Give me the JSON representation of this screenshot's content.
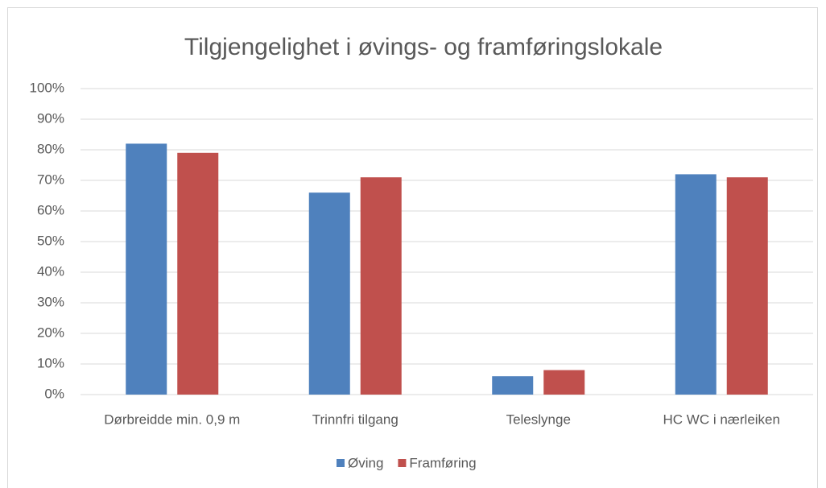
{
  "chart_data": {
    "type": "bar",
    "title": "Tilgjengelighet i øvings- og framføringslokale",
    "categories": [
      "Dørbreidde min. 0,9 m",
      "Trinnfri tilgang",
      "Teleslynge",
      "HC WC i nærleiken"
    ],
    "series": [
      {
        "name": "Øving",
        "color": "#4f81bd",
        "values": [
          82,
          66,
          6,
          72
        ]
      },
      {
        "name": "Framføring",
        "color": "#c0504d",
        "values": [
          79,
          71,
          8,
          71
        ]
      }
    ],
    "ylim": [
      0,
      100
    ],
    "yticks": [
      {
        "value": 0,
        "label": "0%"
      },
      {
        "value": 10,
        "label": "10%"
      },
      {
        "value": 20,
        "label": "20%"
      },
      {
        "value": 30,
        "label": "30%"
      },
      {
        "value": 40,
        "label": "40%"
      },
      {
        "value": 50,
        "label": "50%"
      },
      {
        "value": 60,
        "label": "60%"
      },
      {
        "value": 70,
        "label": "70%"
      },
      {
        "value": 80,
        "label": "80%"
      },
      {
        "value": 90,
        "label": "90%"
      },
      {
        "value": 100,
        "label": "100%"
      }
    ],
    "grid": true,
    "legend": "bottom"
  }
}
